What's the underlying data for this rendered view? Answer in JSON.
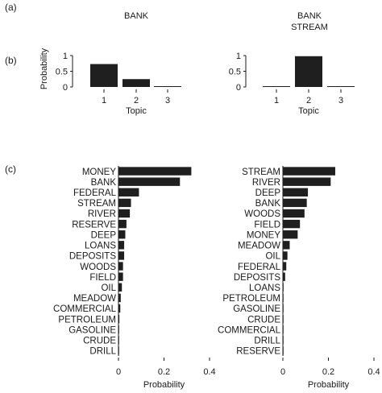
{
  "panel_labels": {
    "a": "(a)",
    "b": "(b)",
    "c": "(c)"
  },
  "chart_data": [
    {
      "type": "bar",
      "panel": "b",
      "title": "BANK",
      "title_lines": [
        "BANK"
      ],
      "categories": [
        "1",
        "2",
        "3"
      ],
      "values": [
        0.73,
        0.25,
        0.02
      ],
      "xlabel": "Topic",
      "ylabel": "Probability",
      "ylim": [
        0,
        1
      ],
      "yticks": [
        "0",
        "0.5",
        "1"
      ]
    },
    {
      "type": "bar",
      "panel": "b",
      "title": "BANK STREAM",
      "title_lines": [
        "BANK",
        "STREAM"
      ],
      "categories": [
        "1",
        "2",
        "3"
      ],
      "values": [
        0.01,
        0.98,
        0.01
      ],
      "xlabel": "Topic",
      "ylabel": "",
      "ylim": [
        0,
        1
      ],
      "yticks": [
        "0",
        "0.5",
        "1"
      ]
    },
    {
      "type": "bar",
      "orientation": "horizontal",
      "panel": "c",
      "categories": [
        "MONEY",
        "BANK",
        "FEDERAL",
        "STREAM",
        "RIVER",
        "RESERVE",
        "DEEP",
        "LOANS",
        "DEPOSITS",
        "WOODS",
        "FIELD",
        "OIL",
        "MEADOW",
        "COMMERCIAL",
        "PETROLEUM",
        "GASOLINE",
        "CRUDE",
        "DRILL"
      ],
      "values": [
        0.32,
        0.27,
        0.09,
        0.055,
        0.05,
        0.035,
        0.03,
        0.025,
        0.025,
        0.02,
        0.02,
        0.015,
        0.01,
        0.008,
        0.004,
        0.003,
        0.002,
        0.001
      ],
      "xlabel": "Probability",
      "xlim": [
        0,
        0.4
      ],
      "xticks": [
        "0",
        "0.2",
        "0.4"
      ]
    },
    {
      "type": "bar",
      "orientation": "horizontal",
      "panel": "c",
      "categories": [
        "STREAM",
        "RIVER",
        "DEEP",
        "BANK",
        "WOODS",
        "FIELD",
        "MONEY",
        "MEADOW",
        "OIL",
        "FEDERAL",
        "DEPOSITS",
        "LOANS",
        "PETROLEUM",
        "GASOLINE",
        "CRUDE",
        "COMMERCIAL",
        "DRILL",
        "RESERVE"
      ],
      "values": [
        0.23,
        0.21,
        0.11,
        0.105,
        0.095,
        0.075,
        0.065,
        0.03,
        0.02,
        0.015,
        0.01,
        0.003,
        0.002,
        0.002,
        0.001,
        0.001,
        0.001,
        0.001
      ],
      "xlabel": "Probability",
      "xlim": [
        0,
        0.4
      ],
      "xticks": [
        "0",
        "0.2",
        "0.4"
      ]
    }
  ]
}
